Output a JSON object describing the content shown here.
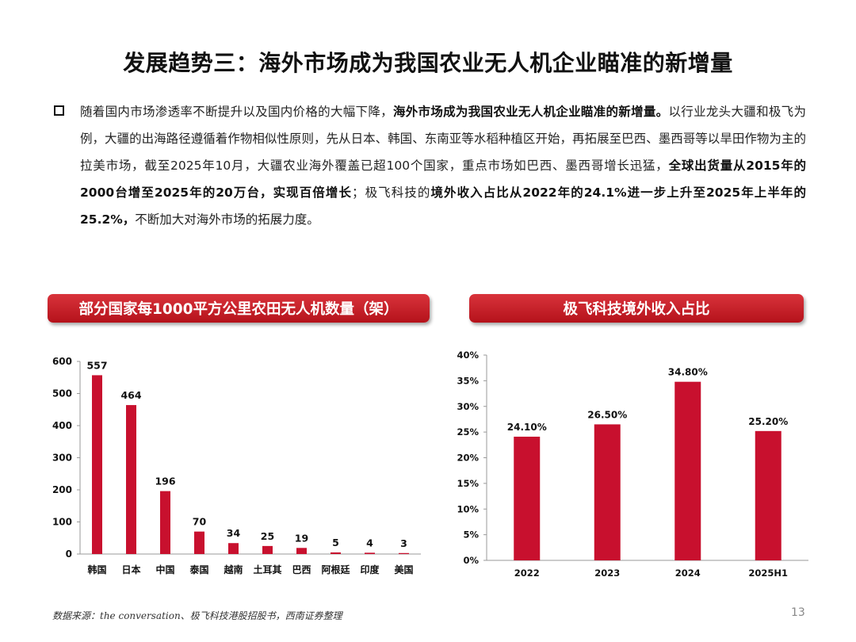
{
  "page": {
    "title": "发展趋势三：海外市场成为我国农业无人机企业瞄准的新增量",
    "paragraph": [
      {
        "text": "随着国内市场渗透率不断提升以及国内价格的大幅下降，",
        "bold": false
      },
      {
        "text": "海外市场成为我国农业无人机企业瞄准的新增量。",
        "bold": true
      },
      {
        "text": "以行业龙头大疆和极飞为例，大疆的出海路径遵循着作物相似性原则，先从日本、韩国、东南亚等水稻种植区开始，再拓展至巴西、墨西哥等以旱田作物为主的拉美市场，截至2025年10月，大疆农业海外覆盖已超100个国家，重点市场如巴西、墨西哥增长迅猛，",
        "bold": false
      },
      {
        "text": "全球出货量从2015年的2000台增至2025年的20万台，实现百倍增长",
        "bold": true
      },
      {
        "text": "；极飞科技的",
        "bold": false
      },
      {
        "text": "境外收入占比从2022年的24.1%进一步上升至2025年上半年的25.2%，",
        "bold": true
      },
      {
        "text": "不断加大对海外市场的拓展力度。",
        "bold": false
      }
    ],
    "source": "数据来源：the conversation、极飞科技港股招股书，西南证券整理",
    "page_number": "13",
    "accent_color": "#c8102e"
  },
  "chart_data": [
    {
      "type": "bar",
      "title": "部分国家每1000平方公里农田无人机数量（架）",
      "categories": [
        "韩国",
        "日本",
        "中国",
        "泰国",
        "越南",
        "土耳其",
        "巴西",
        "阿根廷",
        "印度",
        "美国"
      ],
      "values": [
        557,
        464,
        196,
        70,
        34,
        25,
        19,
        5,
        4,
        3
      ],
      "data_labels": [
        "557",
        "464",
        "196",
        "70",
        "34",
        "25",
        "19",
        "5",
        "4",
        "3"
      ],
      "yticks": [
        "0",
        "100",
        "200",
        "300",
        "400",
        "500",
        "600"
      ],
      "ylim": [
        0,
        600
      ],
      "grid": false,
      "bar_color": "#c8102e"
    },
    {
      "type": "bar",
      "title": "极飞科技境外收入占比",
      "categories": [
        "2022",
        "2023",
        "2024",
        "2025H1"
      ],
      "values": [
        24.1,
        26.5,
        34.8,
        25.2
      ],
      "data_labels": [
        "24.10%",
        "26.50%",
        "34.80%",
        "25.20%"
      ],
      "yticks": [
        "0%",
        "5%",
        "10%",
        "15%",
        "20%",
        "25%",
        "30%",
        "35%",
        "40%"
      ],
      "ylim": [
        0,
        40
      ],
      "grid": false,
      "bar_color": "#c8102e"
    }
  ]
}
